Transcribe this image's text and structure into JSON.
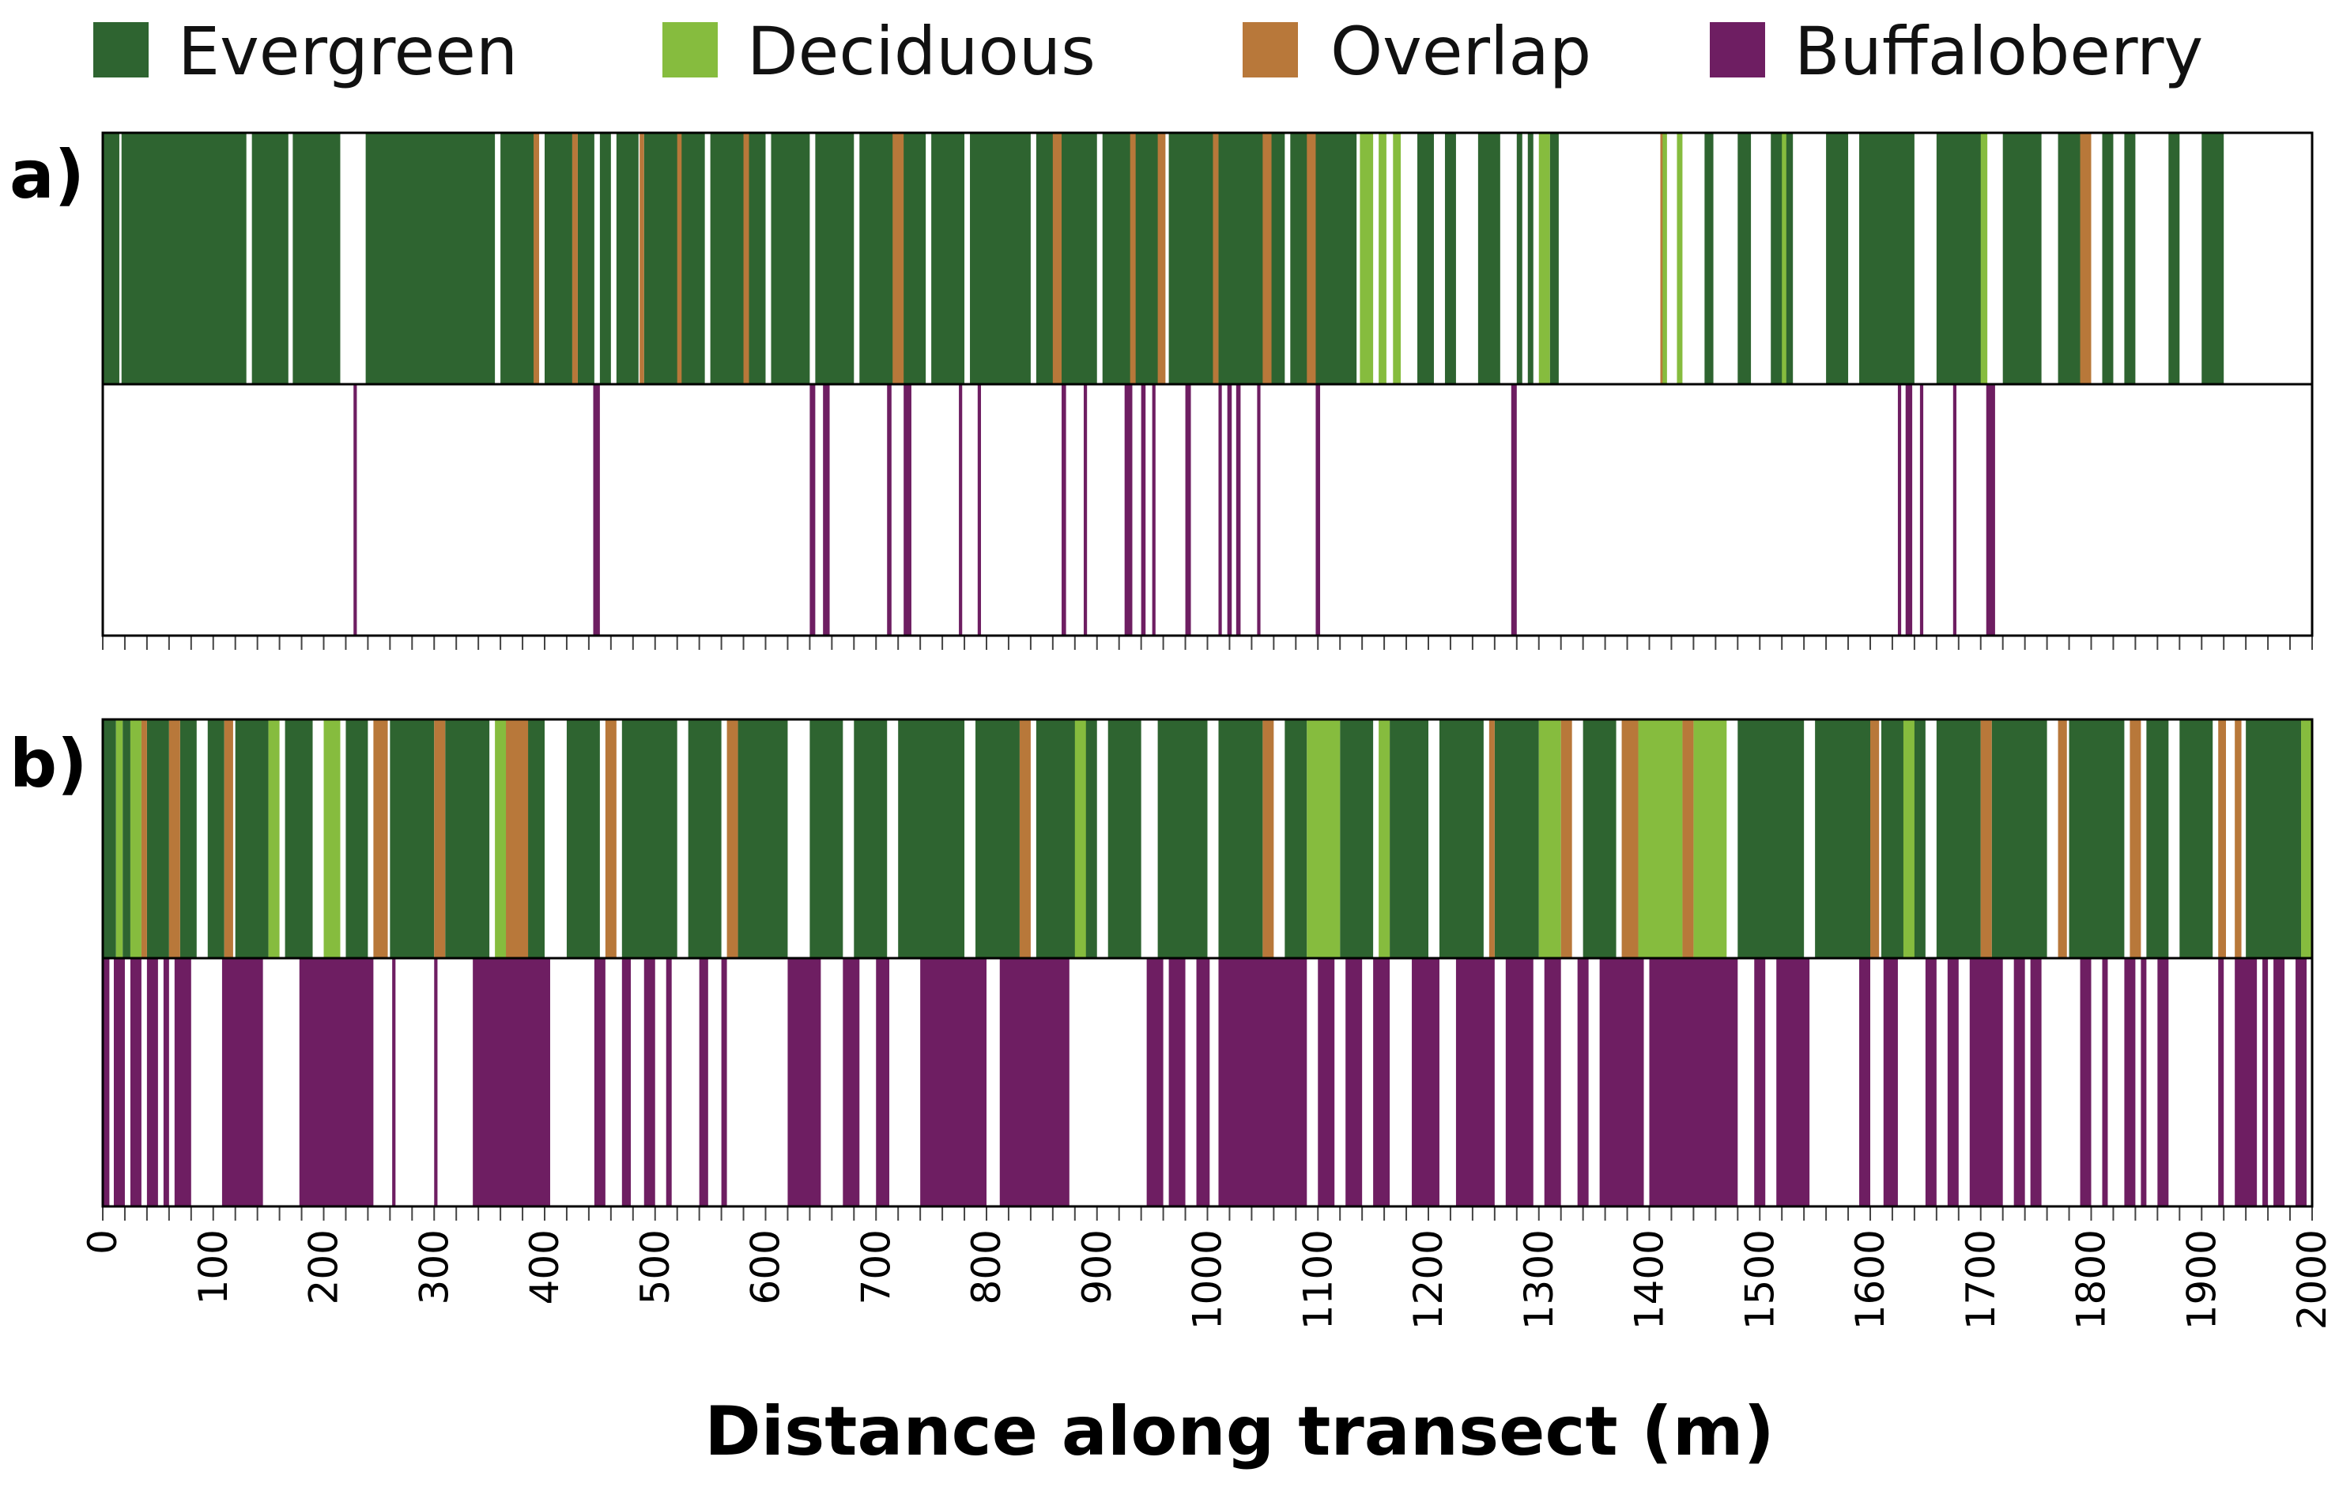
{
  "chart_data": {
    "type": "strip",
    "xlabel": "Distance along transect (m)",
    "xlim": [
      0,
      2000
    ],
    "xticks": [
      "0",
      "100",
      "200",
      "300",
      "400",
      "500",
      "600",
      "700",
      "800",
      "900",
      "1000",
      "1100",
      "1200",
      "1300",
      "1400",
      "1500",
      "1600",
      "1700",
      "1800",
      "1900",
      "2000"
    ],
    "minor_tick_step": 20,
    "legend": [
      {
        "key": "evergreen",
        "label": "Evergreen",
        "color": "#2e6430"
      },
      {
        "key": "deciduous",
        "label": "Deciduous",
        "color": "#86bc3e"
      },
      {
        "key": "overlap",
        "label": "Overlap",
        "color": "#b8783a"
      },
      {
        "key": "buffaloberry",
        "label": "Buffaloberry",
        "color": "#6e1e62"
      }
    ],
    "panels": [
      {
        "label": "a)",
        "canopy_segments": [
          [
            "evergreen",
            0,
            15
          ],
          [
            "evergreen",
            17,
            130
          ],
          [
            "evergreen",
            135,
            168
          ],
          [
            "evergreen",
            172,
            215
          ],
          [
            "evergreen",
            238,
            355
          ],
          [
            "evergreen",
            360,
            395
          ],
          [
            "evergreen",
            400,
            425
          ],
          [
            "evergreen",
            430,
            445
          ],
          [
            "evergreen",
            450,
            460
          ],
          [
            "evergreen",
            465,
            485
          ],
          [
            "evergreen",
            490,
            545
          ],
          [
            "evergreen",
            550,
            600
          ],
          [
            "evergreen",
            605,
            640
          ],
          [
            "evergreen",
            645,
            680
          ],
          [
            "evergreen",
            685,
            745
          ],
          [
            "evergreen",
            750,
            780
          ],
          [
            "evergreen",
            785,
            840
          ],
          [
            "evergreen",
            845,
            900
          ],
          [
            "evergreen",
            905,
            960
          ],
          [
            "evergreen",
            965,
            1005
          ],
          [
            "evergreen",
            1010,
            1070
          ],
          [
            "evergreen",
            1075,
            1135
          ],
          [
            "evergreen",
            1190,
            1205
          ],
          [
            "evergreen",
            1215,
            1225
          ],
          [
            "evergreen",
            1245,
            1265
          ],
          [
            "evergreen",
            1280,
            1285
          ],
          [
            "evergreen",
            1290,
            1295
          ],
          [
            "evergreen",
            1310,
            1318
          ],
          [
            "evergreen",
            1450,
            1458
          ],
          [
            "evergreen",
            1480,
            1492
          ],
          [
            "evergreen",
            1510,
            1530
          ],
          [
            "evergreen",
            1560,
            1580
          ],
          [
            "evergreen",
            1590,
            1640
          ],
          [
            "evergreen",
            1660,
            1705
          ],
          [
            "evergreen",
            1720,
            1755
          ],
          [
            "evergreen",
            1770,
            1795
          ],
          [
            "evergreen",
            1810,
            1820
          ],
          [
            "evergreen",
            1830,
            1840
          ],
          [
            "evergreen",
            1870,
            1880
          ],
          [
            "evergreen",
            1900,
            1920
          ],
          [
            "deciduous",
            1138,
            1150
          ],
          [
            "deciduous",
            1155,
            1162
          ],
          [
            "deciduous",
            1168,
            1175
          ],
          [
            "deciduous",
            1300,
            1310
          ],
          [
            "deciduous",
            1410,
            1416
          ],
          [
            "deciduous",
            1425,
            1430
          ],
          [
            "deciduous",
            1520,
            1524
          ],
          [
            "deciduous",
            1700,
            1706
          ],
          [
            "overlap",
            390,
            395
          ],
          [
            "overlap",
            425,
            430
          ],
          [
            "overlap",
            486,
            490
          ],
          [
            "overlap",
            520,
            524
          ],
          [
            "overlap",
            580,
            585
          ],
          [
            "overlap",
            715,
            725
          ],
          [
            "overlap",
            860,
            868
          ],
          [
            "overlap",
            930,
            935
          ],
          [
            "overlap",
            955,
            962
          ],
          [
            "overlap",
            1005,
            1010
          ],
          [
            "overlap",
            1050,
            1058
          ],
          [
            "overlap",
            1090,
            1098
          ],
          [
            "overlap",
            1410,
            1412
          ],
          [
            "overlap",
            1790,
            1800
          ]
        ],
        "buffaloberry_segments": [
          [
            227,
            230
          ],
          [
            444,
            450
          ],
          [
            640,
            645
          ],
          [
            652,
            658
          ],
          [
            710,
            714
          ],
          [
            725,
            732
          ],
          [
            775,
            778
          ],
          [
            792,
            795
          ],
          [
            868,
            872
          ],
          [
            888,
            891
          ],
          [
            925,
            932
          ],
          [
            940,
            944
          ],
          [
            950,
            953
          ],
          [
            980,
            985
          ],
          [
            1010,
            1013
          ],
          [
            1018,
            1022
          ],
          [
            1026,
            1030
          ],
          [
            1045,
            1048
          ],
          [
            1098,
            1102
          ],
          [
            1275,
            1280
          ],
          [
            1625,
            1628
          ],
          [
            1632,
            1638
          ],
          [
            1645,
            1648
          ],
          [
            1675,
            1678
          ],
          [
            1705,
            1713
          ]
        ]
      },
      {
        "label": "b)",
        "canopy_segments": [
          [
            "evergreen",
            0,
            12
          ],
          [
            "evergreen",
            18,
            25
          ],
          [
            "evergreen",
            40,
            60
          ],
          [
            "evergreen",
            70,
            85
          ],
          [
            "evergreen",
            95,
            110
          ],
          [
            "evergreen",
            120,
            150
          ],
          [
            "evergreen",
            165,
            190
          ],
          [
            "evergreen",
            220,
            240
          ],
          [
            "evergreen",
            260,
            300
          ],
          [
            "evergreen",
            310,
            350
          ],
          [
            "evergreen",
            385,
            400
          ],
          [
            "evergreen",
            420,
            450
          ],
          [
            "evergreen",
            470,
            520
          ],
          [
            "evergreen",
            530,
            560
          ],
          [
            "evergreen",
            575,
            620
          ],
          [
            "evergreen",
            640,
            670
          ],
          [
            "evergreen",
            680,
            710
          ],
          [
            "evergreen",
            720,
            780
          ],
          [
            "evergreen",
            790,
            830
          ],
          [
            "evergreen",
            845,
            900
          ],
          [
            "evergreen",
            910,
            940
          ],
          [
            "evergreen",
            955,
            1000
          ],
          [
            "evergreen",
            1010,
            1050
          ],
          [
            "evergreen",
            1070,
            1090
          ],
          [
            "evergreen",
            1120,
            1150
          ],
          [
            "evergreen",
            1165,
            1200
          ],
          [
            "evergreen",
            1210,
            1250
          ],
          [
            "evergreen",
            1260,
            1300
          ],
          [
            "evergreen",
            1340,
            1370
          ],
          [
            "evergreen",
            1480,
            1540
          ],
          [
            "evergreen",
            1550,
            1600
          ],
          [
            "evergreen",
            1610,
            1650
          ],
          [
            "evergreen",
            1660,
            1700
          ],
          [
            "evergreen",
            1710,
            1760
          ],
          [
            "evergreen",
            1780,
            1830
          ],
          [
            "evergreen",
            1850,
            1870
          ],
          [
            "evergreen",
            1880,
            1910
          ],
          [
            "evergreen",
            1940,
            1990
          ],
          [
            "deciduous",
            12,
            18
          ],
          [
            "deciduous",
            25,
            35
          ],
          [
            "deciduous",
            150,
            160
          ],
          [
            "deciduous",
            200,
            215
          ],
          [
            "deciduous",
            355,
            375
          ],
          [
            "deciduous",
            880,
            890
          ],
          [
            "deciduous",
            1090,
            1120
          ],
          [
            "deciduous",
            1155,
            1165
          ],
          [
            "deciduous",
            1300,
            1320
          ],
          [
            "deciduous",
            1390,
            1430
          ],
          [
            "deciduous",
            1440,
            1470
          ],
          [
            "deciduous",
            1630,
            1640
          ],
          [
            "deciduous",
            1990,
            2000
          ],
          [
            "overlap",
            35,
            40
          ],
          [
            "overlap",
            60,
            70
          ],
          [
            "overlap",
            110,
            118
          ],
          [
            "overlap",
            245,
            258
          ],
          [
            "overlap",
            300,
            310
          ],
          [
            "overlap",
            365,
            385
          ],
          [
            "overlap",
            455,
            465
          ],
          [
            "overlap",
            565,
            575
          ],
          [
            "overlap",
            830,
            840
          ],
          [
            "overlap",
            1050,
            1060
          ],
          [
            "overlap",
            1255,
            1260
          ],
          [
            "overlap",
            1320,
            1330
          ],
          [
            "overlap",
            1375,
            1390
          ],
          [
            "overlap",
            1430,
            1440
          ],
          [
            "overlap",
            1600,
            1608
          ],
          [
            "overlap",
            1700,
            1710
          ],
          [
            "overlap",
            1770,
            1778
          ],
          [
            "overlap",
            1835,
            1845
          ],
          [
            "overlap",
            1915,
            1922
          ],
          [
            "overlap",
            1930,
            1936
          ]
        ],
        "buffaloberry_segments": [
          [
            0,
            6
          ],
          [
            10,
            20
          ],
          [
            25,
            35
          ],
          [
            40,
            50
          ],
          [
            55,
            60
          ],
          [
            65,
            80
          ],
          [
            108,
            145
          ],
          [
            178,
            245
          ],
          [
            262,
            265
          ],
          [
            300,
            303
          ],
          [
            335,
            405
          ],
          [
            445,
            455
          ],
          [
            470,
            478
          ],
          [
            490,
            500
          ],
          [
            510,
            515
          ],
          [
            540,
            548
          ],
          [
            560,
            565
          ],
          [
            620,
            650
          ],
          [
            670,
            685
          ],
          [
            700,
            712
          ],
          [
            740,
            800
          ],
          [
            812,
            875
          ],
          [
            945,
            960
          ],
          [
            965,
            980
          ],
          [
            990,
            1002
          ],
          [
            1010,
            1090
          ],
          [
            1100,
            1115
          ],
          [
            1125,
            1140
          ],
          [
            1150,
            1165
          ],
          [
            1185,
            1210
          ],
          [
            1225,
            1260
          ],
          [
            1270,
            1295
          ],
          [
            1305,
            1320
          ],
          [
            1335,
            1345
          ],
          [
            1355,
            1395
          ],
          [
            1400,
            1480
          ],
          [
            1495,
            1505
          ],
          [
            1515,
            1545
          ],
          [
            1590,
            1600
          ],
          [
            1612,
            1625
          ],
          [
            1650,
            1660
          ],
          [
            1670,
            1680
          ],
          [
            1690,
            1720
          ],
          [
            1730,
            1740
          ],
          [
            1745,
            1755
          ],
          [
            1790,
            1800
          ],
          [
            1810,
            1815
          ],
          [
            1830,
            1840
          ],
          [
            1845,
            1850
          ],
          [
            1860,
            1870
          ],
          [
            1915,
            1920
          ],
          [
            1930,
            1950
          ],
          [
            1955,
            1960
          ],
          [
            1965,
            1975
          ],
          [
            1985,
            1995
          ]
        ]
      }
    ]
  }
}
